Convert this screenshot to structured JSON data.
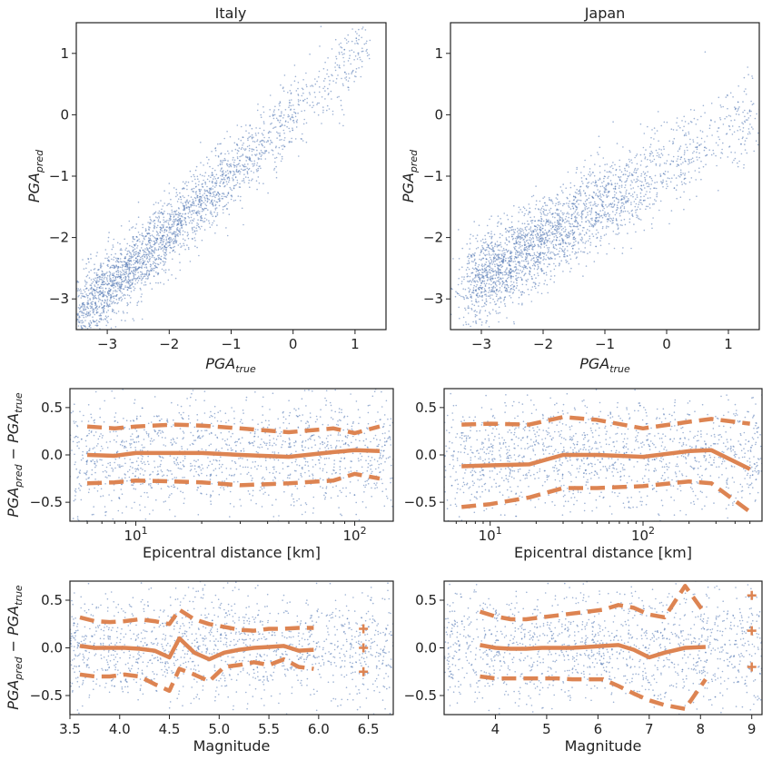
{
  "colors": {
    "scatter": "#4c72b0",
    "trend": "#dd8452",
    "axis": "#222222"
  },
  "chart_data": [
    {
      "id": "italy-scatter",
      "type": "scatter",
      "title": "Italy",
      "xlabel": "PGA_true",
      "ylabel": "PGA_pred",
      "xlim": [
        -3.5,
        1.5
      ],
      "ylim": [
        -3.5,
        1.5
      ],
      "xticks": [
        -3,
        -2,
        -1,
        0,
        1
      ],
      "yticks": [
        -3,
        -2,
        -1,
        0,
        1
      ],
      "cloud": {
        "x_range": [
          -3.5,
          1.0
        ],
        "slope": 0.93,
        "intercept": -0.05,
        "spread": 0.3
      }
    },
    {
      "id": "japan-scatter",
      "type": "scatter",
      "title": "Japan",
      "xlabel": "PGA_true",
      "ylabel": "PGA_pred",
      "xlim": [
        -3.5,
        1.5
      ],
      "ylim": [
        -3.5,
        1.5
      ],
      "xticks": [
        -3,
        -2,
        -1,
        0,
        1
      ],
      "yticks": [
        -3,
        -2,
        -1,
        0,
        1
      ],
      "cloud": {
        "x_range": [
          -3.2,
          1.3
        ],
        "slope": 0.6,
        "intercept": -0.85,
        "spread": 0.35
      }
    },
    {
      "id": "italy-distance",
      "type": "scatter",
      "title": "",
      "xlabel": "Epicentral distance [km]",
      "ylabel": "PGA_pred − PGA_true",
      "xscale": "log",
      "xlim": [
        5,
        150
      ],
      "ylim": [
        -0.7,
        0.7
      ],
      "xticks": [
        10,
        100
      ],
      "xtick_labels": [
        "10^1",
        "10^2"
      ],
      "yticks": [
        0.5,
        0.0,
        -0.5
      ],
      "ytick_labels": [
        "0.5",
        "0.0",
        "−0.5"
      ],
      "series": [
        {
          "style": "mean",
          "x": [
            6,
            8,
            10,
            15,
            20,
            30,
            50,
            80,
            100,
            130
          ],
          "y": [
            0.0,
            -0.01,
            0.02,
            0.02,
            0.02,
            0.0,
            -0.02,
            0.03,
            0.05,
            0.04
          ]
        },
        {
          "style": "upper",
          "x": [
            6,
            8,
            10,
            15,
            20,
            30,
            50,
            80,
            100,
            130
          ],
          "y": [
            0.3,
            0.28,
            0.3,
            0.32,
            0.31,
            0.28,
            0.24,
            0.28,
            0.23,
            0.3
          ]
        },
        {
          "style": "lower",
          "x": [
            6,
            8,
            10,
            15,
            20,
            30,
            50,
            80,
            100,
            130
          ],
          "y": [
            -0.3,
            -0.29,
            -0.27,
            -0.28,
            -0.29,
            -0.32,
            -0.3,
            -0.27,
            -0.2,
            -0.25
          ]
        }
      ]
    },
    {
      "id": "japan-distance",
      "type": "scatter",
      "title": "",
      "xlabel": "Epicentral distance [km]",
      "ylabel": "PGA_pred − PGA_true",
      "xscale": "log",
      "xlim": [
        5,
        600
      ],
      "ylim": [
        -0.7,
        0.7
      ],
      "xticks": [
        10,
        100
      ],
      "xtick_labels": [
        "10^1",
        "10^2"
      ],
      "yticks": [
        0.5,
        0.0,
        -0.5
      ],
      "ytick_labels": [
        "0.5",
        "0.0",
        "−0.5"
      ],
      "series": [
        {
          "style": "mean",
          "x": [
            6.5,
            10,
            18,
            30,
            50,
            100,
            200,
            280,
            500
          ],
          "y": [
            -0.12,
            -0.11,
            -0.1,
            0.0,
            0.0,
            -0.02,
            0.04,
            0.05,
            -0.15
          ]
        },
        {
          "style": "upper",
          "x": [
            6.5,
            10,
            18,
            30,
            50,
            100,
            200,
            280,
            500
          ],
          "y": [
            0.32,
            0.33,
            0.32,
            0.4,
            0.37,
            0.28,
            0.35,
            0.38,
            0.33
          ]
        },
        {
          "style": "lower",
          "x": [
            6.5,
            10,
            18,
            30,
            50,
            100,
            200,
            280,
            500
          ],
          "y": [
            -0.55,
            -0.52,
            -0.45,
            -0.35,
            -0.35,
            -0.33,
            -0.28,
            -0.3,
            -0.6
          ]
        }
      ]
    },
    {
      "id": "italy-magnitude",
      "type": "scatter",
      "title": "",
      "xlabel": "Magnitude",
      "ylabel": "PGA_pred − PGA_true",
      "xlim": [
        3.5,
        6.75
      ],
      "ylim": [
        -0.7,
        0.7
      ],
      "xticks": [
        3.5,
        4.0,
        4.5,
        5.0,
        5.5,
        6.0,
        6.5
      ],
      "xtick_labels": [
        "3.5",
        "4.0",
        "4.5",
        "5.0",
        "5.5",
        "6.0",
        "6.5"
      ],
      "yticks": [
        0.5,
        0.0,
        -0.5
      ],
      "ytick_labels": [
        "0.5",
        "0.0",
        "−0.5"
      ],
      "series": [
        {
          "style": "mean",
          "x": [
            3.6,
            3.75,
            3.9,
            4.05,
            4.2,
            4.35,
            4.5,
            4.6,
            4.75,
            4.9,
            5.05,
            5.2,
            5.35,
            5.5,
            5.65,
            5.8,
            5.95
          ],
          "y": [
            0.02,
            0.0,
            0.0,
            0.0,
            -0.01,
            -0.03,
            -0.1,
            0.1,
            -0.05,
            -0.12,
            -0.05,
            -0.02,
            0.0,
            0.01,
            0.02,
            -0.03,
            -0.02
          ]
        },
        {
          "style": "upper",
          "x": [
            3.6,
            3.75,
            3.9,
            4.05,
            4.2,
            4.35,
            4.5,
            4.6,
            4.75,
            4.9,
            5.05,
            5.2,
            5.35,
            5.5,
            5.65,
            5.8,
            5.95
          ],
          "y": [
            0.32,
            0.28,
            0.27,
            0.28,
            0.3,
            0.28,
            0.25,
            0.4,
            0.3,
            0.25,
            0.22,
            0.19,
            0.18,
            0.2,
            0.2,
            0.21,
            0.21
          ]
        },
        {
          "style": "lower",
          "x": [
            3.6,
            3.75,
            3.9,
            4.05,
            4.2,
            4.35,
            4.5,
            4.6,
            4.75,
            4.9,
            5.05,
            5.2,
            5.35,
            5.5,
            5.65,
            5.8,
            5.95
          ],
          "y": [
            -0.28,
            -0.3,
            -0.3,
            -0.28,
            -0.3,
            -0.38,
            -0.45,
            -0.22,
            -0.28,
            -0.35,
            -0.2,
            -0.18,
            -0.15,
            -0.18,
            -0.12,
            -0.2,
            -0.22
          ]
        },
        {
          "style": "markers",
          "x": [
            6.45,
            6.45,
            6.45
          ],
          "y": [
            0.2,
            0.0,
            -0.25
          ]
        }
      ]
    },
    {
      "id": "japan-magnitude",
      "type": "scatter",
      "title": "",
      "xlabel": "Magnitude",
      "ylabel": "PGA_pred − PGA_true",
      "xlim": [
        3.0,
        9.2
      ],
      "ylim": [
        -0.7,
        0.7
      ],
      "xticks": [
        4,
        5,
        6,
        7,
        8,
        9
      ],
      "xtick_labels": [
        "4",
        "5",
        "6",
        "7",
        "8",
        "9"
      ],
      "yticks": [
        0.5,
        0.0,
        -0.5
      ],
      "ytick_labels": [
        "0.5",
        "0.0",
        "−0.5"
      ],
      "series": [
        {
          "style": "mean",
          "x": [
            3.7,
            4.0,
            4.3,
            4.6,
            4.9,
            5.2,
            5.5,
            5.8,
            6.1,
            6.4,
            6.7,
            7.0,
            7.3,
            7.7,
            8.1
          ],
          "y": [
            0.03,
            0.0,
            -0.01,
            -0.01,
            0.0,
            0.0,
            0.0,
            0.01,
            0.02,
            0.03,
            -0.02,
            -0.1,
            -0.05,
            0.0,
            0.01
          ]
        },
        {
          "style": "upper",
          "x": [
            3.7,
            4.0,
            4.3,
            4.6,
            4.9,
            5.2,
            5.5,
            5.8,
            6.1,
            6.4,
            6.7,
            7.0,
            7.3,
            7.7,
            8.1
          ],
          "y": [
            0.38,
            0.33,
            0.3,
            0.3,
            0.32,
            0.34,
            0.36,
            0.38,
            0.4,
            0.45,
            0.42,
            0.35,
            0.32,
            0.65,
            0.35
          ]
        },
        {
          "style": "lower",
          "x": [
            3.7,
            4.0,
            4.3,
            4.6,
            4.9,
            5.2,
            5.5,
            5.8,
            6.1,
            6.4,
            6.7,
            7.0,
            7.3,
            7.7,
            8.1
          ],
          "y": [
            -0.3,
            -0.32,
            -0.32,
            -0.32,
            -0.32,
            -0.32,
            -0.33,
            -0.33,
            -0.33,
            -0.4,
            -0.48,
            -0.55,
            -0.6,
            -0.64,
            -0.33
          ]
        },
        {
          "style": "markers",
          "x": [
            9.0,
            9.0,
            9.0
          ],
          "y": [
            0.55,
            0.18,
            -0.2
          ]
        }
      ]
    }
  ]
}
